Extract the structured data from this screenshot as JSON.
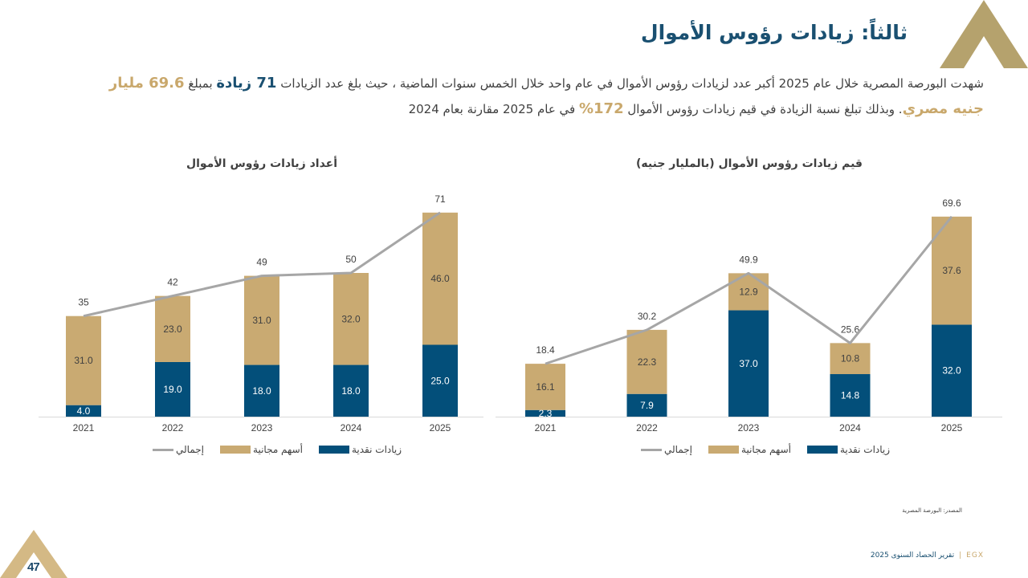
{
  "page": {
    "title": "ثالثاً: زيادات رؤوس الأموال",
    "page_number": "47",
    "colors": {
      "navy": "#034f7a",
      "gold": "#c9aa72",
      "gray_line": "#a6a6a6",
      "title_blue": "#1a5071",
      "accent_gold": "#c9a86c"
    }
  },
  "summary": {
    "line1_part1": "شهدت البورصة المصرية خلال عام 2025 أكبر عدد لزيادات رؤوس الأموال في عام واحد خلال الخمس سنوات الماضية ، حيث بلغ عدد الزيادات ",
    "line1_highlight": "71 زيادة",
    "line1_part2": " بمبلغ ",
    "line2_highlight": "69.6 مليار جنيه مصري",
    "line2_part1": ". وبذلك تبلغ نسبة الزيادة في قيم زيادات رؤوس الأموال ",
    "line2_highlight2": "172%",
    "line2_part2": " في عام 2025 مقارنة بعام 2024"
  },
  "chart_data": [
    {
      "id": "counts",
      "type": "bar",
      "stacked": true,
      "title": "أعداد زيادات رؤوس الأموال",
      "categories": [
        "2021",
        "2022",
        "2023",
        "2024",
        "2025"
      ],
      "series": [
        {
          "name": "زيادات نقدية",
          "color": "#034f7a",
          "values": [
            4.0,
            19.0,
            18.0,
            18.0,
            25.0
          ],
          "labels": [
            "4.0",
            "19.0",
            "18.0",
            "18.0",
            "25.0"
          ]
        },
        {
          "name": "أسهم مجانية",
          "color": "#c9aa72",
          "values": [
            31.0,
            23.0,
            31.0,
            32.0,
            46.0
          ],
          "labels": [
            "31.0",
            "23.0",
            "31.0",
            "32.0",
            "46.0"
          ]
        }
      ],
      "line": {
        "name": "إجمالي",
        "color": "#a6a6a6",
        "values": [
          35,
          42,
          49,
          50,
          71
        ],
        "labels": [
          "35",
          "42",
          "49",
          "50",
          "71"
        ]
      },
      "legend": [
        "زيادات نقدية",
        "أسهم مجانية",
        "إجمالي"
      ],
      "legend_position": "bottom",
      "xlabel": "",
      "ylabel": "",
      "ylim": [
        0,
        71
      ],
      "grid": false
    },
    {
      "id": "values",
      "type": "bar",
      "stacked": true,
      "title": "قيم زيادات رؤوس الأموال (بالمليار جنيه)",
      "categories": [
        "2021",
        "2022",
        "2023",
        "2024",
        "2025"
      ],
      "series": [
        {
          "name": "زيادات نقدية",
          "color": "#034f7a",
          "values": [
            2.3,
            7.9,
            37.0,
            14.8,
            32.0
          ],
          "labels": [
            "2.3",
            "7.9",
            "37.0",
            "14.8",
            "32.0"
          ]
        },
        {
          "name": "أسهم مجانية",
          "color": "#c9aa72",
          "values": [
            16.1,
            22.3,
            12.9,
            10.8,
            37.6
          ],
          "labels": [
            "16.1",
            "22.3",
            "12.9",
            "10.8",
            "37.6"
          ]
        }
      ],
      "line": {
        "name": "إجمالي",
        "color": "#a6a6a6",
        "values": [
          18.4,
          30.2,
          49.9,
          25.6,
          69.6
        ],
        "labels": [
          "18.4",
          "30.2",
          "49.9",
          "25.6",
          "69.6"
        ]
      },
      "legend": [
        "زيادات نقدية",
        "أسهم مجانية",
        "إجمالي"
      ],
      "legend_position": "bottom",
      "xlabel": "",
      "ylabel": "",
      "ylim": [
        0,
        69.6
      ],
      "grid": false
    }
  ],
  "footer": {
    "source": "المصدر: البورصة المصرية",
    "brand": "EGX",
    "separator": "|",
    "report": "تقرير الحصاد السنوى 2025"
  }
}
